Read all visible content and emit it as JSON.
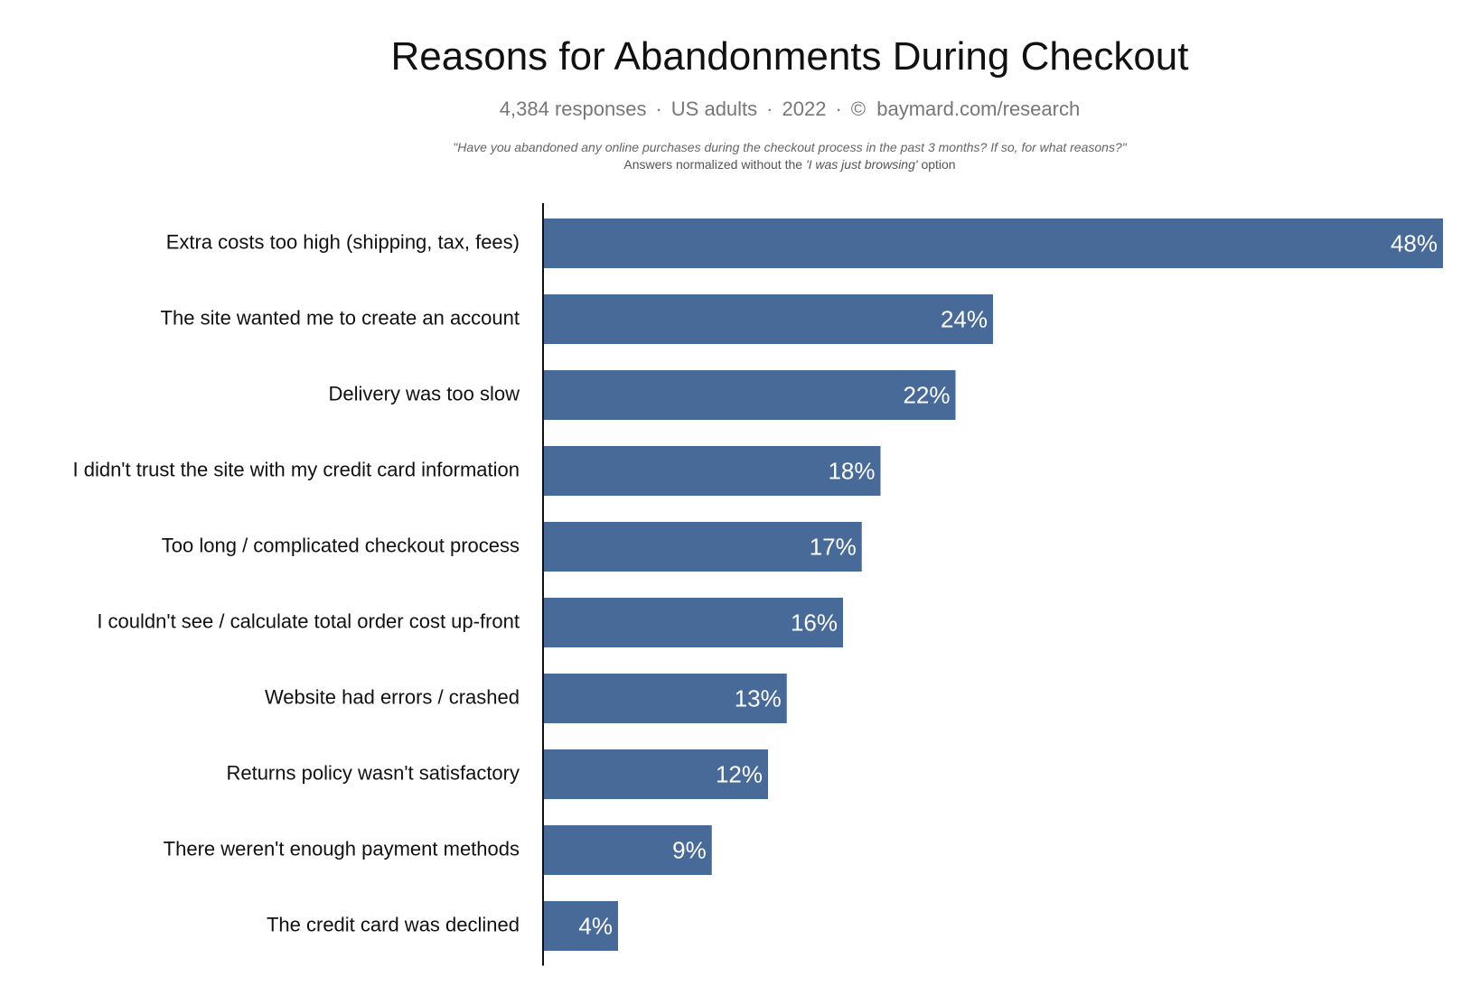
{
  "chart_data": {
    "type": "bar",
    "orientation": "horizontal",
    "title": "Reasons for Abandonments During Checkout",
    "subtitle": {
      "responses": "4,384 responses",
      "audience": "US adults",
      "year": "2022",
      "copyright_symbol": "©",
      "source": "baymard.com/research",
      "separator": "·"
    },
    "question": "\"Have you abandoned any online purchases during the checkout process in the past 3 months? If so, for what reasons?\"",
    "note": {
      "prefix": "Answers normalized without the",
      "emphasis": "'I was just browsing'",
      "suffix": "option"
    },
    "categories": [
      "Extra costs too high (shipping, tax, fees)",
      "The site wanted me to create an account",
      "Delivery was too slow",
      "I didn't trust the site with my credit card information",
      "Too long / complicated checkout process",
      "I couldn't see / calculate total order cost up-front",
      "Website had errors / crashed",
      "Returns policy wasn't satisfactory",
      "There weren't enough payment methods",
      "The credit card was declined"
    ],
    "values": [
      48,
      24,
      22,
      18,
      17,
      16,
      13,
      12,
      9,
      4
    ],
    "value_labels": [
      "48%",
      "24%",
      "22%",
      "18%",
      "17%",
      "16%",
      "13%",
      "12%",
      "9%",
      "4%"
    ],
    "unit": "%",
    "xlim": [
      0,
      48
    ],
    "grid": false,
    "legend": "none",
    "colors": {
      "bar": "#476a99",
      "bar_label": "#ffffff",
      "axis": "#111111",
      "category_label": "#111111"
    }
  }
}
